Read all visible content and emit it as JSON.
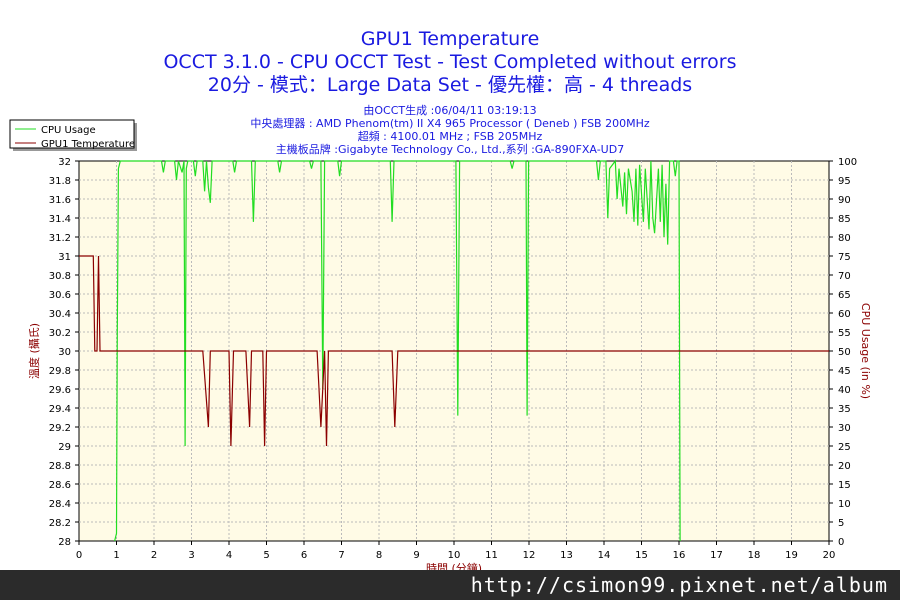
{
  "chart_data": {
    "type": "line",
    "title": "GPU1 Temperature",
    "subtitle": "OCCT 3.1.0 - CPU OCCT Test - Test Completed without errors",
    "subtitle2": "20分 - 模式：Large Data Set - 優先權：高 - 4 threads",
    "info_lines": [
      "由OCCT生成 :06/04/11 03:19:13",
      "中央處理器 : AMD Phenom(tm) II X4 965 Processor ( Deneb ) FSB 200MHz",
      "超頻 : 4100.01 MHz ; FSB 205MHz",
      "主機板品牌 :Gigabyte Technology Co., Ltd.,系列 :GA-890FXA-UD7"
    ],
    "xlabel": "時間 (分鐘)",
    "ylabel_left": "溫度 (攝氏)",
    "ylabel_right": "CPU Usage (in %)",
    "xlim": [
      0,
      20
    ],
    "ylim_left": [
      28,
      32
    ],
    "ylim_right": [
      0,
      100
    ],
    "x_ticks": [
      "0",
      "1",
      "2",
      "3",
      "4",
      "5",
      "6",
      "7",
      "8",
      "9",
      "10",
      "11",
      "12",
      "13",
      "14",
      "15",
      "16",
      "17",
      "18",
      "19",
      "20"
    ],
    "y_left_ticks": [
      "28",
      "28.2",
      "28.4",
      "28.6",
      "28.8",
      "29",
      "29.2",
      "29.4",
      "29.6",
      "29.8",
      "30",
      "30.2",
      "30.4",
      "30.6",
      "30.8",
      "31",
      "31.2",
      "31.4",
      "31.6",
      "31.8",
      "32"
    ],
    "y_right_ticks": [
      "0",
      "5",
      "10",
      "15",
      "20",
      "25",
      "30",
      "35",
      "40",
      "45",
      "50",
      "55",
      "60",
      "65",
      "70",
      "75",
      "80",
      "85",
      "90",
      "95",
      "100"
    ],
    "grid": true,
    "legend_position": "top-left",
    "series": [
      {
        "name": "CPU Usage",
        "axis": "right",
        "color": "#22dd22",
        "points": [
          [
            0.95,
            0
          ],
          [
            1.0,
            2
          ],
          [
            1.02,
            55
          ],
          [
            1.05,
            98
          ],
          [
            1.1,
            100
          ],
          [
            2.2,
            100
          ],
          [
            2.25,
            97
          ],
          [
            2.3,
            100
          ],
          [
            2.55,
            100
          ],
          [
            2.6,
            95
          ],
          [
            2.65,
            100
          ],
          [
            2.75,
            97
          ],
          [
            2.8,
            100
          ],
          [
            2.83,
            25
          ],
          [
            2.86,
            98
          ],
          [
            2.9,
            100
          ],
          [
            3.05,
            100
          ],
          [
            3.1,
            96
          ],
          [
            3.15,
            100
          ],
          [
            3.3,
            100
          ],
          [
            3.35,
            92
          ],
          [
            3.4,
            100
          ],
          [
            3.45,
            93
          ],
          [
            3.5,
            89
          ],
          [
            3.55,
            100
          ],
          [
            4.1,
            100
          ],
          [
            4.15,
            97
          ],
          [
            4.2,
            100
          ],
          [
            4.6,
            100
          ],
          [
            4.65,
            84
          ],
          [
            4.7,
            100
          ],
          [
            5.3,
            100
          ],
          [
            5.35,
            97
          ],
          [
            5.4,
            100
          ],
          [
            6.15,
            100
          ],
          [
            6.2,
            98
          ],
          [
            6.25,
            100
          ],
          [
            6.45,
            100
          ],
          [
            6.5,
            40
          ],
          [
            6.55,
            100
          ],
          [
            6.9,
            100
          ],
          [
            6.95,
            96
          ],
          [
            7.0,
            100
          ],
          [
            8.3,
            100
          ],
          [
            8.35,
            84
          ],
          [
            8.4,
            100
          ],
          [
            10.05,
            100
          ],
          [
            10.1,
            33
          ],
          [
            10.15,
            100
          ],
          [
            11.5,
            100
          ],
          [
            11.55,
            98
          ],
          [
            11.6,
            100
          ],
          [
            11.92,
            100
          ],
          [
            11.95,
            33
          ],
          [
            11.99,
            100
          ],
          [
            13.8,
            100
          ],
          [
            13.85,
            95
          ],
          [
            13.9,
            100
          ],
          [
            14.05,
            100
          ],
          [
            14.1,
            85
          ],
          [
            14.15,
            98
          ],
          [
            14.3,
            100
          ],
          [
            14.35,
            90
          ],
          [
            14.4,
            98
          ],
          [
            14.5,
            88
          ],
          [
            14.55,
            97
          ],
          [
            14.6,
            86
          ],
          [
            14.65,
            98
          ],
          [
            14.75,
            92
          ],
          [
            14.8,
            84
          ],
          [
            14.85,
            98
          ],
          [
            14.9,
            83
          ],
          [
            14.95,
            99
          ],
          [
            15.05,
            84
          ],
          [
            15.1,
            98
          ],
          [
            15.2,
            82
          ],
          [
            15.25,
            100
          ],
          [
            15.3,
            85
          ],
          [
            15.35,
            81
          ],
          [
            15.45,
            98
          ],
          [
            15.5,
            84
          ],
          [
            15.55,
            99
          ],
          [
            15.6,
            80
          ],
          [
            15.65,
            94
          ],
          [
            15.7,
            78
          ],
          [
            15.75,
            100
          ],
          [
            15.85,
            100
          ],
          [
            15.9,
            96
          ],
          [
            15.95,
            100
          ],
          [
            16.0,
            100
          ],
          [
            16.03,
            0
          ]
        ]
      },
      {
        "name": "GPU1 Temperature",
        "axis": "left",
        "color": "#8b0000",
        "points": [
          [
            0,
            31
          ],
          [
            0.38,
            31
          ],
          [
            0.42,
            30
          ],
          [
            0.48,
            30
          ],
          [
            0.52,
            31
          ],
          [
            0.56,
            30
          ],
          [
            2.85,
            30
          ],
          [
            3.3,
            30
          ],
          [
            3.45,
            29.2
          ],
          [
            3.5,
            30
          ],
          [
            4.0,
            30
          ],
          [
            4.05,
            29
          ],
          [
            4.12,
            30
          ],
          [
            4.45,
            30
          ],
          [
            4.55,
            29.2
          ],
          [
            4.6,
            30
          ],
          [
            4.9,
            30
          ],
          [
            4.95,
            29
          ],
          [
            5.0,
            30
          ],
          [
            6.35,
            30
          ],
          [
            6.45,
            29.2
          ],
          [
            6.55,
            30
          ],
          [
            6.6,
            29
          ],
          [
            6.65,
            30
          ],
          [
            8.35,
            30
          ],
          [
            8.42,
            29.2
          ],
          [
            8.5,
            30
          ],
          [
            20,
            30
          ]
        ]
      }
    ]
  },
  "watermark": "http://csimon99.pixnet.net/album"
}
